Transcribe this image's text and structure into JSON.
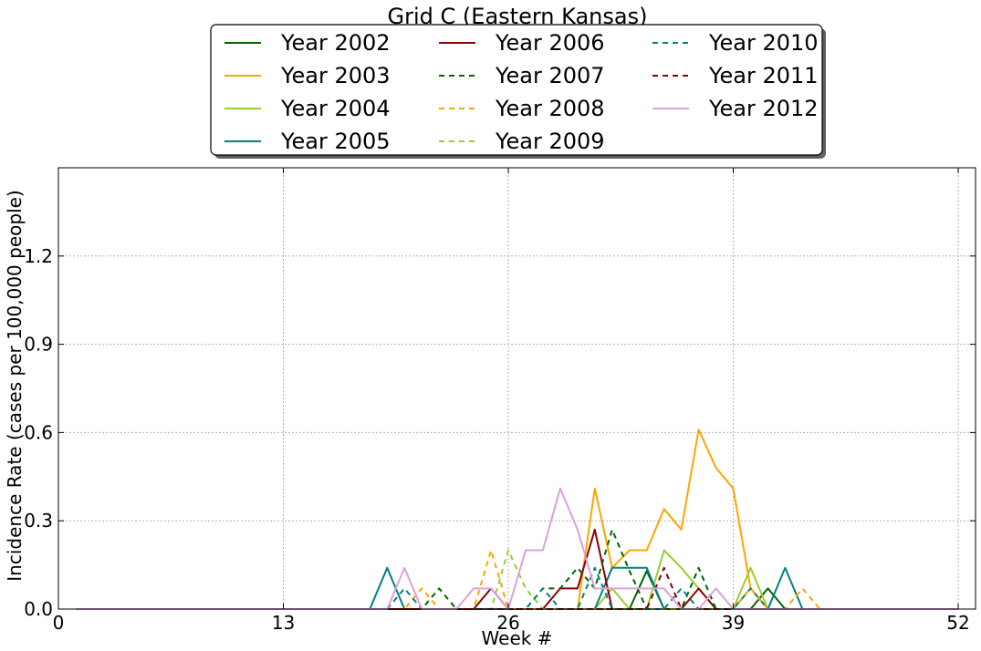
{
  "chart_data": {
    "type": "line",
    "title": "Grid C (Eastern Kansas)",
    "xlabel": "Week #",
    "ylabel": "Incidence Rate (cases per 100,000 people)",
    "xlim": [
      0,
      53
    ],
    "ylim": [
      0,
      1.5
    ],
    "xticks": [
      0,
      13,
      26,
      39,
      52
    ],
    "xtick_labels": [
      "0",
      "13",
      "26",
      "39",
      "52"
    ],
    "yticks": [
      0.0,
      0.3,
      0.6,
      0.9,
      1.2
    ],
    "ytick_labels": [
      "0.0",
      "0.3",
      "0.6",
      "0.9",
      "1.2"
    ],
    "grid": true,
    "legend_position": "top-center",
    "legend_columns": 3,
    "x": [
      1,
      2,
      3,
      4,
      5,
      6,
      7,
      8,
      9,
      10,
      11,
      12,
      13,
      14,
      15,
      16,
      17,
      18,
      19,
      20,
      21,
      22,
      23,
      24,
      25,
      26,
      27,
      28,
      29,
      30,
      31,
      32,
      33,
      34,
      35,
      36,
      37,
      38,
      39,
      40,
      41,
      42,
      43,
      44,
      45,
      46,
      47,
      48,
      49,
      50,
      51,
      52
    ],
    "series": [
      {
        "name": "Year 2002",
        "color": "#006400",
        "dash": "solid",
        "values": [
          0,
          0,
          0,
          0,
          0,
          0,
          0,
          0,
          0,
          0,
          0,
          0,
          0,
          0,
          0,
          0,
          0,
          0,
          0,
          0,
          0,
          0,
          0,
          0,
          0,
          0,
          0,
          0,
          0,
          0,
          0,
          0,
          0,
          0.13,
          0,
          0,
          0,
          0,
          0,
          0,
          0.07,
          0,
          0,
          0,
          0,
          0,
          0,
          0,
          0,
          0,
          0,
          0
        ]
      },
      {
        "name": "Year 2003",
        "color": "#FFA500",
        "dash": "solid",
        "values": [
          0,
          0,
          0,
          0,
          0,
          0,
          0,
          0,
          0,
          0,
          0,
          0,
          0,
          0,
          0,
          0,
          0,
          0,
          0,
          0,
          0,
          0,
          0,
          0,
          0,
          0,
          0,
          0,
          0,
          0,
          0.41,
          0.14,
          0.2,
          0.2,
          0.34,
          0.27,
          0.61,
          0.48,
          0.41,
          0.07,
          0,
          0,
          0,
          0,
          0,
          0,
          0,
          0,
          0,
          0,
          0,
          0
        ]
      },
      {
        "name": "Year 2004",
        "color": "#9ACD32",
        "dash": "solid",
        "values": [
          0,
          0,
          0,
          0,
          0,
          0,
          0,
          0,
          0,
          0,
          0,
          0,
          0,
          0,
          0,
          0,
          0,
          0,
          0,
          0,
          0,
          0,
          0,
          0,
          0,
          0,
          0,
          0,
          0,
          0,
          0,
          0.07,
          0,
          0,
          0.2,
          0.14,
          0.07,
          0,
          0,
          0.14,
          0,
          0,
          0,
          0,
          0,
          0,
          0,
          0,
          0,
          0,
          0,
          0
        ]
      },
      {
        "name": "Year 2005",
        "color": "#008080",
        "dash": "solid",
        "values": [
          0,
          0,
          0,
          0,
          0,
          0,
          0,
          0,
          0,
          0,
          0,
          0,
          0,
          0,
          0,
          0,
          0,
          0,
          0.14,
          0,
          0,
          0,
          0,
          0,
          0,
          0,
          0,
          0,
          0,
          0,
          0,
          0.14,
          0.14,
          0.14,
          0,
          0,
          0,
          0,
          0,
          0.07,
          0,
          0.14,
          0,
          0,
          0,
          0,
          0,
          0,
          0,
          0,
          0,
          0
        ]
      },
      {
        "name": "Year 2006",
        "color": "#8B0000",
        "dash": "solid",
        "values": [
          0,
          0,
          0,
          0,
          0,
          0,
          0,
          0,
          0,
          0,
          0,
          0,
          0,
          0,
          0,
          0,
          0,
          0,
          0,
          0,
          0,
          0,
          0,
          0,
          0.07,
          0,
          0,
          0,
          0.07,
          0.07,
          0.27,
          0,
          0,
          0,
          0,
          0,
          0.07,
          0,
          0,
          0,
          0,
          0,
          0,
          0,
          0,
          0,
          0,
          0,
          0,
          0,
          0,
          0
        ]
      },
      {
        "name": "Year 2007",
        "color": "#006400",
        "dash": "dashed",
        "values": [
          0,
          0,
          0,
          0,
          0,
          0,
          0,
          0,
          0,
          0,
          0,
          0,
          0,
          0,
          0,
          0,
          0,
          0,
          0,
          0,
          0,
          0.07,
          0,
          0,
          0,
          0,
          0,
          0.07,
          0.07,
          0.14,
          0.07,
          0.27,
          0.13,
          0,
          0,
          0,
          0.14,
          0,
          0,
          0,
          0,
          0,
          0,
          0,
          0,
          0,
          0,
          0,
          0,
          0,
          0,
          0
        ]
      },
      {
        "name": "Year 2008",
        "color": "#FFA500",
        "dash": "dashed",
        "values": [
          0,
          0,
          0,
          0,
          0,
          0,
          0,
          0,
          0,
          0,
          0,
          0,
          0,
          0,
          0,
          0,
          0,
          0,
          0,
          0,
          0.07,
          0,
          0,
          0,
          0.2,
          0,
          0,
          0,
          0,
          0,
          0,
          0,
          0,
          0,
          0,
          0,
          0,
          0,
          0,
          0.07,
          0,
          0,
          0.07,
          0,
          0,
          0,
          0,
          0,
          0,
          0,
          0,
          0
        ]
      },
      {
        "name": "Year 2009",
        "color": "#9ACD32",
        "dash": "dashed",
        "values": [
          0,
          0,
          0,
          0,
          0,
          0,
          0,
          0,
          0,
          0,
          0,
          0,
          0,
          0,
          0,
          0,
          0,
          0,
          0,
          0,
          0,
          0,
          0,
          0,
          0,
          0.2,
          0.07,
          0,
          0,
          0,
          0,
          0,
          0,
          0,
          0,
          0,
          0,
          0,
          0,
          0,
          0,
          0,
          0,
          0,
          0,
          0,
          0,
          0,
          0,
          0,
          0,
          0
        ]
      },
      {
        "name": "Year 2010",
        "color": "#008080",
        "dash": "dashed",
        "values": [
          0,
          0,
          0,
          0,
          0,
          0,
          0,
          0,
          0,
          0,
          0,
          0,
          0,
          0,
          0,
          0,
          0,
          0,
          0,
          0.07,
          0,
          0,
          0,
          0,
          0,
          0,
          0,
          0.07,
          0,
          0,
          0.14,
          0,
          0,
          0,
          0,
          0.07,
          0,
          0,
          0,
          0,
          0,
          0,
          0,
          0,
          0,
          0,
          0,
          0,
          0,
          0,
          0,
          0
        ]
      },
      {
        "name": "Year 2011",
        "color": "#8B0000",
        "dash": "dashed",
        "values": [
          0,
          0,
          0,
          0,
          0,
          0,
          0,
          0,
          0,
          0,
          0,
          0,
          0,
          0,
          0,
          0,
          0,
          0,
          0,
          0,
          0,
          0,
          0,
          0,
          0,
          0,
          0,
          0,
          0,
          0,
          0,
          0,
          0,
          0,
          0.14,
          0,
          0,
          0,
          0,
          0,
          0,
          0,
          0,
          0,
          0,
          0,
          0,
          0,
          0,
          0,
          0,
          0
        ]
      },
      {
        "name": "Year 2012",
        "color": "#DDA0DD",
        "dash": "solid",
        "values": [
          0,
          0,
          0,
          0,
          0,
          0,
          0,
          0,
          0,
          0,
          0,
          0,
          0,
          0,
          0,
          0,
          0,
          0,
          0,
          0.14,
          0,
          0,
          0,
          0.07,
          0.07,
          0,
          0.2,
          0.2,
          0.41,
          0.27,
          0.07,
          0.07,
          0.07,
          0.07,
          0.07,
          0,
          0,
          0.07,
          0,
          0,
          0,
          0,
          0,
          0,
          0,
          0,
          0,
          0,
          0,
          0,
          0,
          0
        ]
      }
    ]
  }
}
